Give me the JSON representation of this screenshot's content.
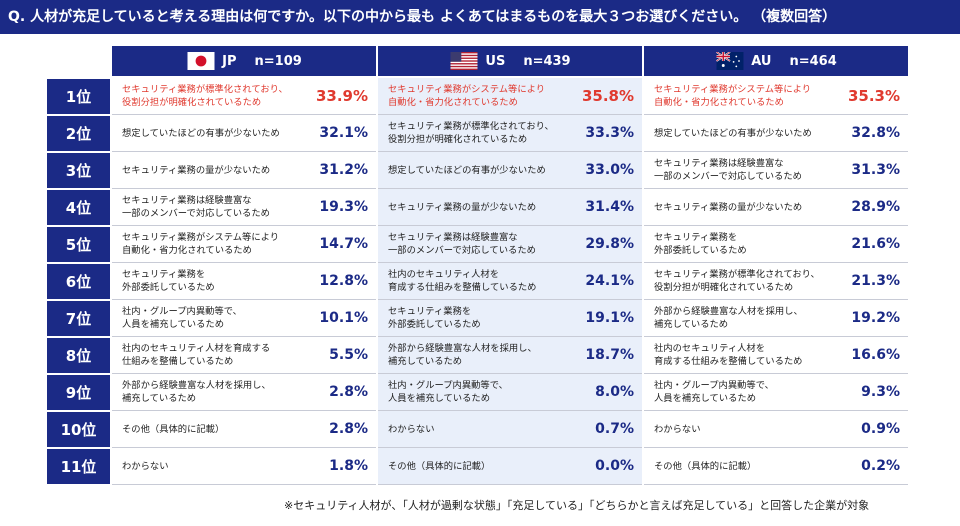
{
  "question": "Q. 人材が充足していると考える理由は何ですか。以下の中から最も よくあてはまるものを最大３つお選びください。 （複数回答）",
  "footnote": "※セキュリティ人材が、「人材が過剰な状態」「充足している」「どちらかと言えば充足している」と回答した企業が対象",
  "colors": {
    "navy": "#1b2a86",
    "highlight": "#e03a2f",
    "us_background": "#e9effa"
  },
  "icons": [
    "japan-flag-icon",
    "us-flag-icon",
    "australia-flag-icon"
  ],
  "chart_data": {
    "type": "table",
    "ranks": [
      "1位",
      "2位",
      "3位",
      "4位",
      "5位",
      "6位",
      "7位",
      "8位",
      "9位",
      "10位",
      "11位"
    ],
    "columns": [
      {
        "code": "JP",
        "n": "n=109",
        "rows": [
          {
            "label": "セキュリティ業務が標準化されており、\n役割分担が明確化されているため",
            "value": "33.9%"
          },
          {
            "label": "想定していたほどの有事が少ないため",
            "value": "32.1%"
          },
          {
            "label": "セキュリティ業務の量が少ないため",
            "value": "31.2%"
          },
          {
            "label": "セキュリティ業務は経験豊富な\n一部のメンバーで対応しているため",
            "value": "19.3%"
          },
          {
            "label": "セキュリティ業務がシステム等により\n自動化・省力化されているため",
            "value": "14.7%"
          },
          {
            "label": "セキュリティ業務を\n外部委託しているため",
            "value": "12.8%"
          },
          {
            "label": "社内・グループ内異動等で、\n人員を補充しているため",
            "value": "10.1%"
          },
          {
            "label": "社内のセキュリティ人材を育成する\n仕組みを整備しているため",
            "value": "5.5%"
          },
          {
            "label": "外部から経験豊富な人材を採用し、\n補充しているため",
            "value": "2.8%"
          },
          {
            "label": "その他（具体的に記載）",
            "value": "2.8%"
          },
          {
            "label": "わからない",
            "value": "1.8%"
          }
        ]
      },
      {
        "code": "US",
        "n": "n=439",
        "rows": [
          {
            "label": "セキュリティ業務がシステム等により\n自動化・省力化されているため",
            "value": "35.8%"
          },
          {
            "label": "セキュリティ業務が標準化されており、\n役割分担が明確化されているため",
            "value": "33.3%"
          },
          {
            "label": "想定していたほどの有事が少ないため",
            "value": "33.0%"
          },
          {
            "label": "セキュリティ業務の量が少ないため",
            "value": "31.4%"
          },
          {
            "label": "セキュリティ業務は経験豊富な\n一部のメンバーで対応しているため",
            "value": "29.8%"
          },
          {
            "label": "社内のセキュリティ人材を\n育成する仕組みを整備しているため",
            "value": "24.1%"
          },
          {
            "label": "セキュリティ業務を\n外部委託しているため",
            "value": "19.1%"
          },
          {
            "label": "外部から経験豊富な人材を採用し、\n補充しているため",
            "value": "18.7%"
          },
          {
            "label": "社内・グループ内異動等で、\n人員を補充しているため",
            "value": "8.0%"
          },
          {
            "label": "わからない",
            "value": "0.7%"
          },
          {
            "label": "その他（具体的に記載）",
            "value": "0.0%"
          }
        ]
      },
      {
        "code": "AU",
        "n": "n=464",
        "rows": [
          {
            "label": "セキュリティ業務がシステム等により\n自動化・省力化されているため",
            "value": "35.3%"
          },
          {
            "label": "想定していたほどの有事が少ないため",
            "value": "32.8%"
          },
          {
            "label": "セキュリティ業務は経験豊富な\n一部のメンバーで対応しているため",
            "value": "31.3%"
          },
          {
            "label": "セキュリティ業務の量が少ないため",
            "value": "28.9%"
          },
          {
            "label": "セキュリティ業務を\n外部委託しているため",
            "value": "21.6%"
          },
          {
            "label": "セキュリティ業務が標準化されており、\n役割分担が明確化されているため",
            "value": "21.3%"
          },
          {
            "label": "外部から経験豊富な人材を採用し、\n補充しているため",
            "value": "19.2%"
          },
          {
            "label": "社内のセキュリティ人材を\n育成する仕組みを整備しているため",
            "value": "16.6%"
          },
          {
            "label": "社内・グループ内異動等で、\n人員を補充しているため",
            "value": "9.3%"
          },
          {
            "label": "わからない",
            "value": "0.9%"
          },
          {
            "label": "その他（具体的に記載）",
            "value": "0.2%"
          }
        ]
      }
    ]
  }
}
